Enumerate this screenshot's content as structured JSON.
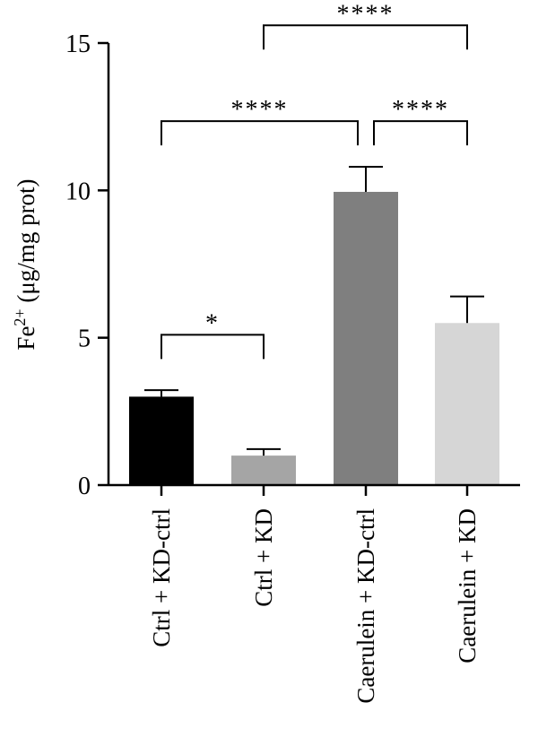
{
  "chart_data": {
    "type": "bar",
    "categories": [
      "Ctrl + KD-ctrl",
      "Ctrl + KD",
      "Caerulein + KD-ctrl",
      "Caerulein + KD"
    ],
    "values": [
      3.0,
      1.0,
      9.95,
      5.5
    ],
    "errors": [
      0.22,
      0.22,
      0.85,
      0.9
    ],
    "bar_colors": [
      "#000000",
      "#a5a5a5",
      "#7f7f7f",
      "#d6d6d6"
    ],
    "ylabel_base": "Fe",
    "ylabel_sup": "2+",
    "ylabel_rest": " (μg/mg prot)",
    "ylim": [
      0,
      15
    ],
    "yticks": [
      0,
      5,
      10,
      15
    ],
    "ytick_labels": [
      "0",
      "5",
      "10",
      "15"
    ],
    "grid": false,
    "significance": [
      {
        "from": 0,
        "to": 1,
        "label": "*",
        "y": 5.1
      },
      {
        "from": 0,
        "to": 2,
        "label": "****",
        "y": 12.35
      },
      {
        "from": 2,
        "to": 3,
        "label": "****",
        "y": 12.35
      },
      {
        "from": 1,
        "to": 3,
        "label": "****",
        "y": 15.6
      }
    ]
  }
}
